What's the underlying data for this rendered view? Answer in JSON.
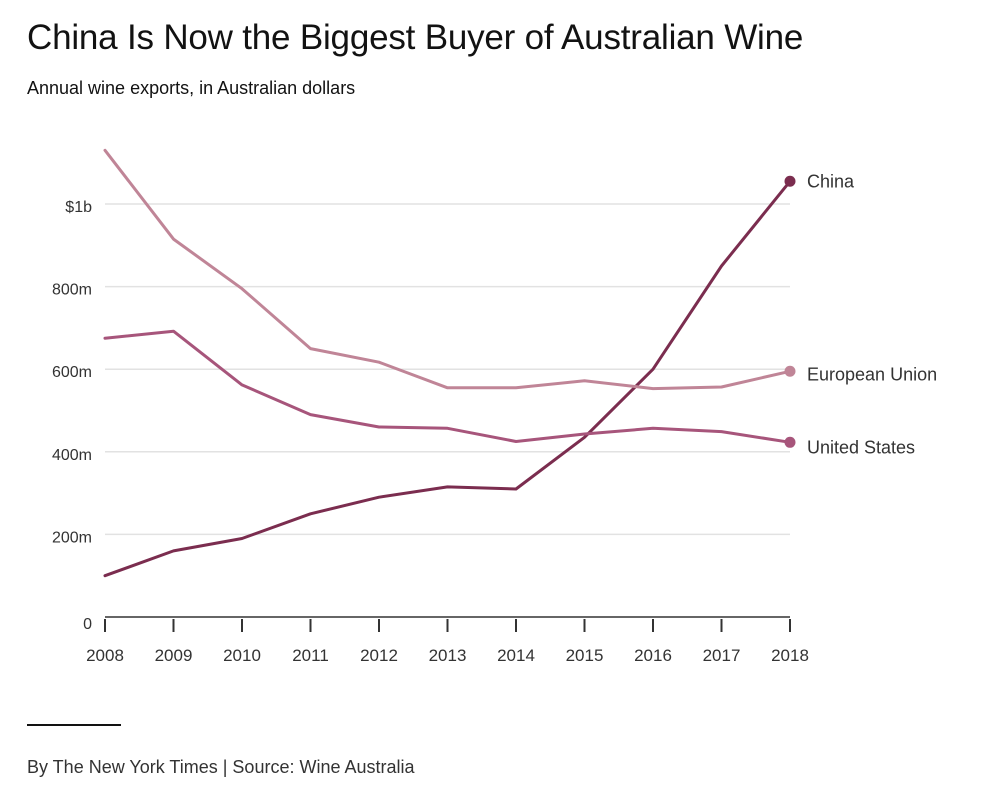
{
  "title": "China Is Now the Biggest Buyer of Australian Wine",
  "subtitle": "Annual wine exports, in Australian dollars",
  "credit": "By The New York Times | Source: Wine Australia",
  "chart_data": {
    "type": "line",
    "x": [
      2008,
      2009,
      2010,
      2011,
      2012,
      2013,
      2014,
      2015,
      2016,
      2017,
      2018
    ],
    "x_tick_labels": [
      "2008",
      "2009",
      "2010",
      "2011",
      "2012",
      "2013",
      "2014",
      "2015",
      "2016",
      "2017",
      "2018"
    ],
    "y_ticks": [
      0,
      200,
      400,
      600,
      800,
      1000
    ],
    "y_tick_labels": [
      "0",
      "200m",
      "400m",
      "600m",
      "800m",
      "$1b"
    ],
    "ylim": [
      0,
      1150
    ],
    "unit": "millions of Australian dollars",
    "grid": "horizontal",
    "series": [
      {
        "name": "China",
        "color": "#7b2d4f",
        "values": [
          100,
          160,
          190,
          250,
          290,
          315,
          310,
          435,
          600,
          850,
          1055
        ]
      },
      {
        "name": "European Union",
        "color": "#c08597",
        "values": [
          1130,
          915,
          795,
          650,
          617,
          555,
          555,
          572,
          553,
          557,
          595
        ]
      },
      {
        "name": "United States",
        "color": "#a7557b",
        "values": [
          675,
          692,
          562,
          490,
          460,
          457,
          425,
          443,
          457,
          449,
          423
        ]
      }
    ]
  }
}
